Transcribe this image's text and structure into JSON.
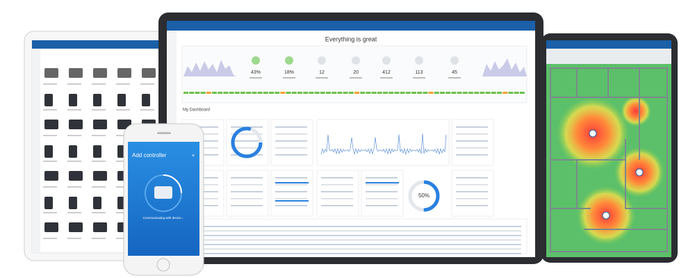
{
  "dashboard": {
    "headline": "Everything is great",
    "stats": [
      "43%",
      "18%",
      "12",
      "20",
      "412",
      "113",
      "45"
    ],
    "section": "My Dashboard",
    "gauge": "50%"
  },
  "phone": {
    "title": "Add controller",
    "status": "Communicating with device..."
  }
}
